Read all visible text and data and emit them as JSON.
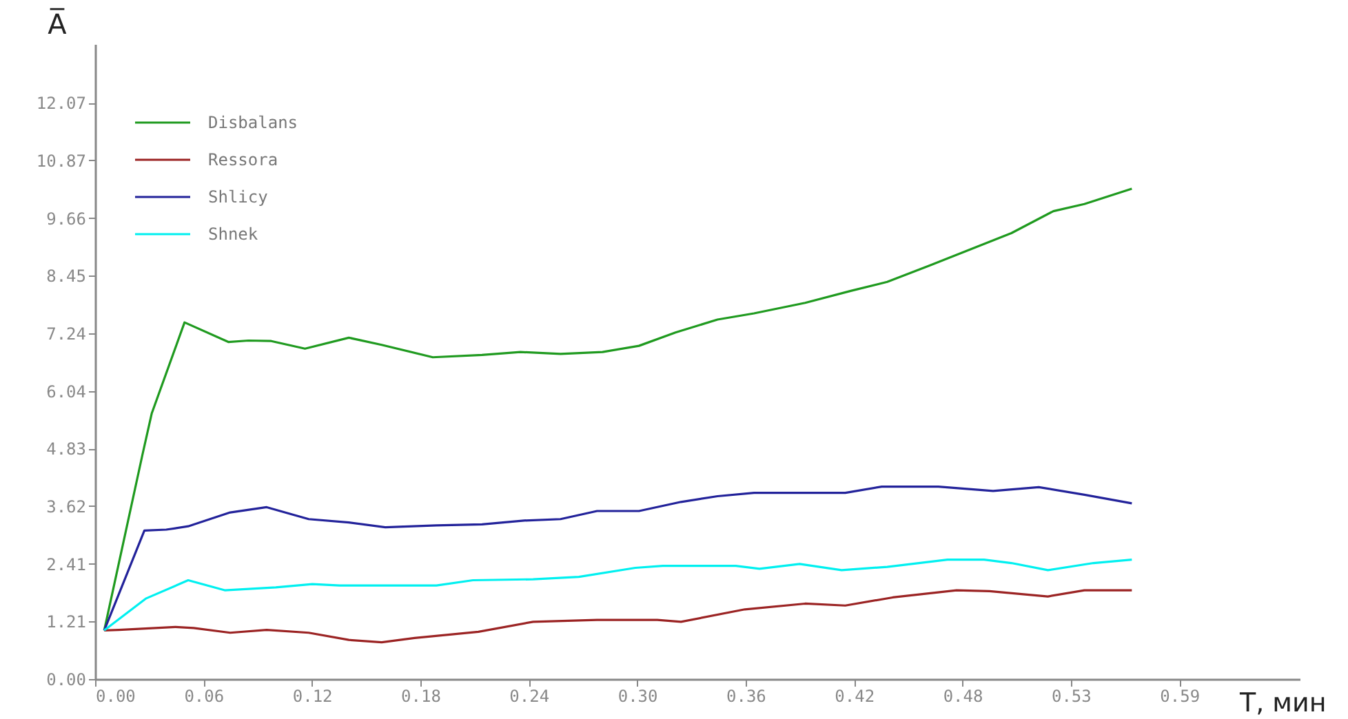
{
  "chart_data": {
    "type": "line",
    "xlabel": "T, мин",
    "ylabel": "A̅",
    "legend": "top left",
    "xlim": [
      0,
      0.66
    ],
    "ylim": [
      0,
      13.3
    ],
    "xticks": [
      {
        "value": 0,
        "label": "0.00"
      },
      {
        "value": 0.0594,
        "label": "0.06"
      },
      {
        "value": 0.1188,
        "label": "0.12"
      },
      {
        "value": 0.1782,
        "label": "0.18"
      },
      {
        "value": 0.2376,
        "label": "0.24"
      },
      {
        "value": 0.297,
        "label": "0.30"
      },
      {
        "value": 0.3564,
        "label": "0.36"
      },
      {
        "value": 0.4158,
        "label": "0.42"
      },
      {
        "value": 0.4752,
        "label": "0.48"
      },
      {
        "value": 0.5346,
        "label": "0.53"
      },
      {
        "value": 0.594,
        "label": "0.59"
      }
    ],
    "yticks": [
      {
        "value": 0,
        "label": "0.00"
      },
      {
        "value": 1.2072,
        "label": "1.21"
      },
      {
        "value": 2.4144,
        "label": "2.41"
      },
      {
        "value": 3.6216,
        "label": "3.62"
      },
      {
        "value": 4.8288,
        "label": "4.83"
      },
      {
        "value": 6.036,
        "label": "6.04"
      },
      {
        "value": 7.2432,
        "label": "7.24"
      },
      {
        "value": 8.4504,
        "label": "8.45"
      },
      {
        "value": 9.6576,
        "label": "9.66"
      },
      {
        "value": 10.866,
        "label": "10.87"
      },
      {
        "value": 12.072,
        "label": "12.07"
      }
    ],
    "series": [
      {
        "name": "Disbalans",
        "color": "#1f9a1f",
        "x": [
          0.005,
          0.026,
          0.031,
          0.049,
          0.073,
          0.084,
          0.0965,
          0.115,
          0.139,
          0.157,
          0.185,
          0.212,
          0.233,
          0.255,
          0.278,
          0.298,
          0.318,
          0.341,
          0.361,
          0.389,
          0.414,
          0.434,
          0.457,
          0.477,
          0.502,
          0.525,
          0.542,
          0.568
        ],
        "values": [
          1.02,
          4.71,
          5.56,
          7.47,
          7.06,
          7.09,
          7.08,
          6.92,
          7.15,
          7.0,
          6.74,
          6.79,
          6.85,
          6.81,
          6.85,
          6.98,
          7.26,
          7.53,
          7.66,
          7.88,
          8.13,
          8.32,
          8.66,
          8.96,
          9.34,
          9.8,
          9.95,
          10.27
        ]
      },
      {
        "name": "Ressora",
        "color": "#9b2323",
        "x": [
          0.005,
          0.013,
          0.044,
          0.054,
          0.074,
          0.094,
          0.117,
          0.139,
          0.157,
          0.175,
          0.21,
          0.24,
          0.275,
          0.296,
          0.308,
          0.321,
          0.356,
          0.389,
          0.411,
          0.437,
          0.472,
          0.49,
          0.522,
          0.542,
          0.568
        ],
        "values": [
          1.02,
          1.03,
          1.09,
          1.07,
          0.97,
          1.03,
          0.97,
          0.82,
          0.77,
          0.86,
          0.99,
          1.2,
          1.24,
          1.24,
          1.24,
          1.2,
          1.46,
          1.58,
          1.54,
          1.71,
          1.86,
          1.84,
          1.73,
          1.86,
          1.86
        ]
      },
      {
        "name": "Shlicy",
        "color": "#22229a",
        "x": [
          0.005,
          0.027,
          0.039,
          0.051,
          0.074,
          0.094,
          0.117,
          0.139,
          0.159,
          0.187,
          0.212,
          0.235,
          0.255,
          0.275,
          0.298,
          0.321,
          0.341,
          0.361,
          0.411,
          0.431,
          0.462,
          0.492,
          0.517,
          0.542,
          0.568
        ],
        "values": [
          1.02,
          3.11,
          3.13,
          3.2,
          3.49,
          3.6,
          3.35,
          3.28,
          3.18,
          3.22,
          3.24,
          3.32,
          3.35,
          3.52,
          3.52,
          3.71,
          3.83,
          3.9,
          3.9,
          4.03,
          4.03,
          3.94,
          4.02,
          3.86,
          3.68
        ]
      },
      {
        "name": "Shnek",
        "color": "#00f0f0",
        "x": [
          0.005,
          0.028,
          0.051,
          0.071,
          0.099,
          0.119,
          0.134,
          0.187,
          0.207,
          0.24,
          0.265,
          0.296,
          0.311,
          0.351,
          0.364,
          0.386,
          0.409,
          0.434,
          0.467,
          0.487,
          0.502,
          0.522,
          0.547,
          0.568
        ],
        "values": [
          1.02,
          1.69,
          2.07,
          1.86,
          1.92,
          1.99,
          1.96,
          1.96,
          2.07,
          2.09,
          2.14,
          2.33,
          2.37,
          2.37,
          2.31,
          2.41,
          2.28,
          2.35,
          2.5,
          2.5,
          2.43,
          2.28,
          2.43,
          2.5
        ]
      }
    ]
  }
}
